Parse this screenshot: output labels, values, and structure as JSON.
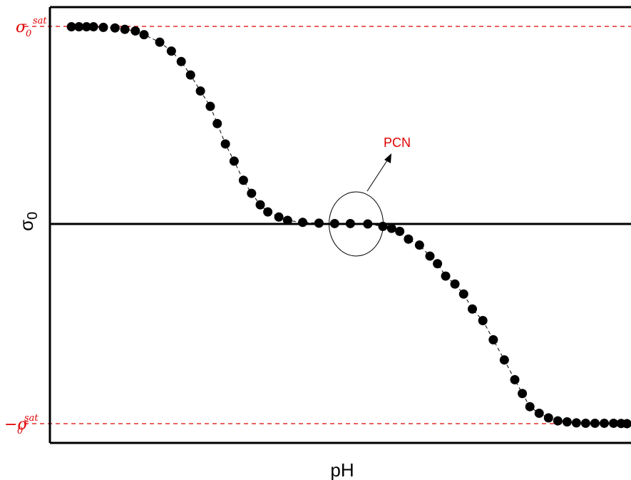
{
  "chart_data": {
    "type": "scatter",
    "title": "",
    "xlabel": "pH",
    "ylabel": "σ",
    "ylabel_sub": "0",
    "y_ticks": [
      {
        "value": 1,
        "symbol": "σ",
        "sub": "0",
        "sup": "sat",
        "prefix": ""
      },
      {
        "value": -1,
        "symbol": "σ",
        "sub": "0",
        "sup": "sat",
        "prefix": "−"
      }
    ],
    "xlim": [
      0,
      1
    ],
    "ylim": [
      -1.08,
      1.1
    ],
    "reference_lines": [
      {
        "y": 0,
        "style": "solid",
        "color": "#000000"
      },
      {
        "y": 1,
        "style": "dashed",
        "color": "#e00000"
      },
      {
        "y": -1,
        "style": "dashed",
        "color": "#e00000"
      }
    ],
    "annotation": {
      "label": "PCN",
      "color": "#e00000",
      "x": 0.527,
      "y": 0.0
    },
    "series": [
      {
        "color": "#000000",
        "x": [
          0.037,
          0.05,
          0.063,
          0.075,
          0.092,
          0.112,
          0.129,
          0.147,
          0.162,
          0.189,
          0.209,
          0.226,
          0.242,
          0.259,
          0.276,
          0.288,
          0.302,
          0.317,
          0.333,
          0.347,
          0.362,
          0.375,
          0.394,
          0.409,
          0.435,
          0.463,
          0.49,
          0.517,
          0.547,
          0.573,
          0.588,
          0.602,
          0.617,
          0.636,
          0.654,
          0.667,
          0.681,
          0.697,
          0.712,
          0.727,
          0.745,
          0.763,
          0.782,
          0.8,
          0.813,
          0.826,
          0.842,
          0.858,
          0.874,
          0.89,
          0.906,
          0.922,
          0.938,
          0.954,
          0.97,
          0.983,
          0.993
        ],
        "y": [
          0.998,
          0.998,
          0.998,
          0.998,
          0.995,
          0.992,
          0.985,
          0.977,
          0.958,
          0.92,
          0.875,
          0.822,
          0.754,
          0.673,
          0.595,
          0.508,
          0.405,
          0.318,
          0.221,
          0.155,
          0.097,
          0.061,
          0.035,
          0.018,
          0.008,
          0.004,
          0.002,
          0.002,
          0.0,
          -0.012,
          -0.022,
          -0.037,
          -0.076,
          -0.106,
          -0.161,
          -0.199,
          -0.261,
          -0.301,
          -0.351,
          -0.426,
          -0.484,
          -0.58,
          -0.681,
          -0.78,
          -0.849,
          -0.915,
          -0.948,
          -0.971,
          -0.986,
          -0.991,
          -0.996,
          -0.998,
          -0.998,
          -0.998,
          -0.998,
          -0.999,
          -1.0
        ]
      }
    ]
  }
}
